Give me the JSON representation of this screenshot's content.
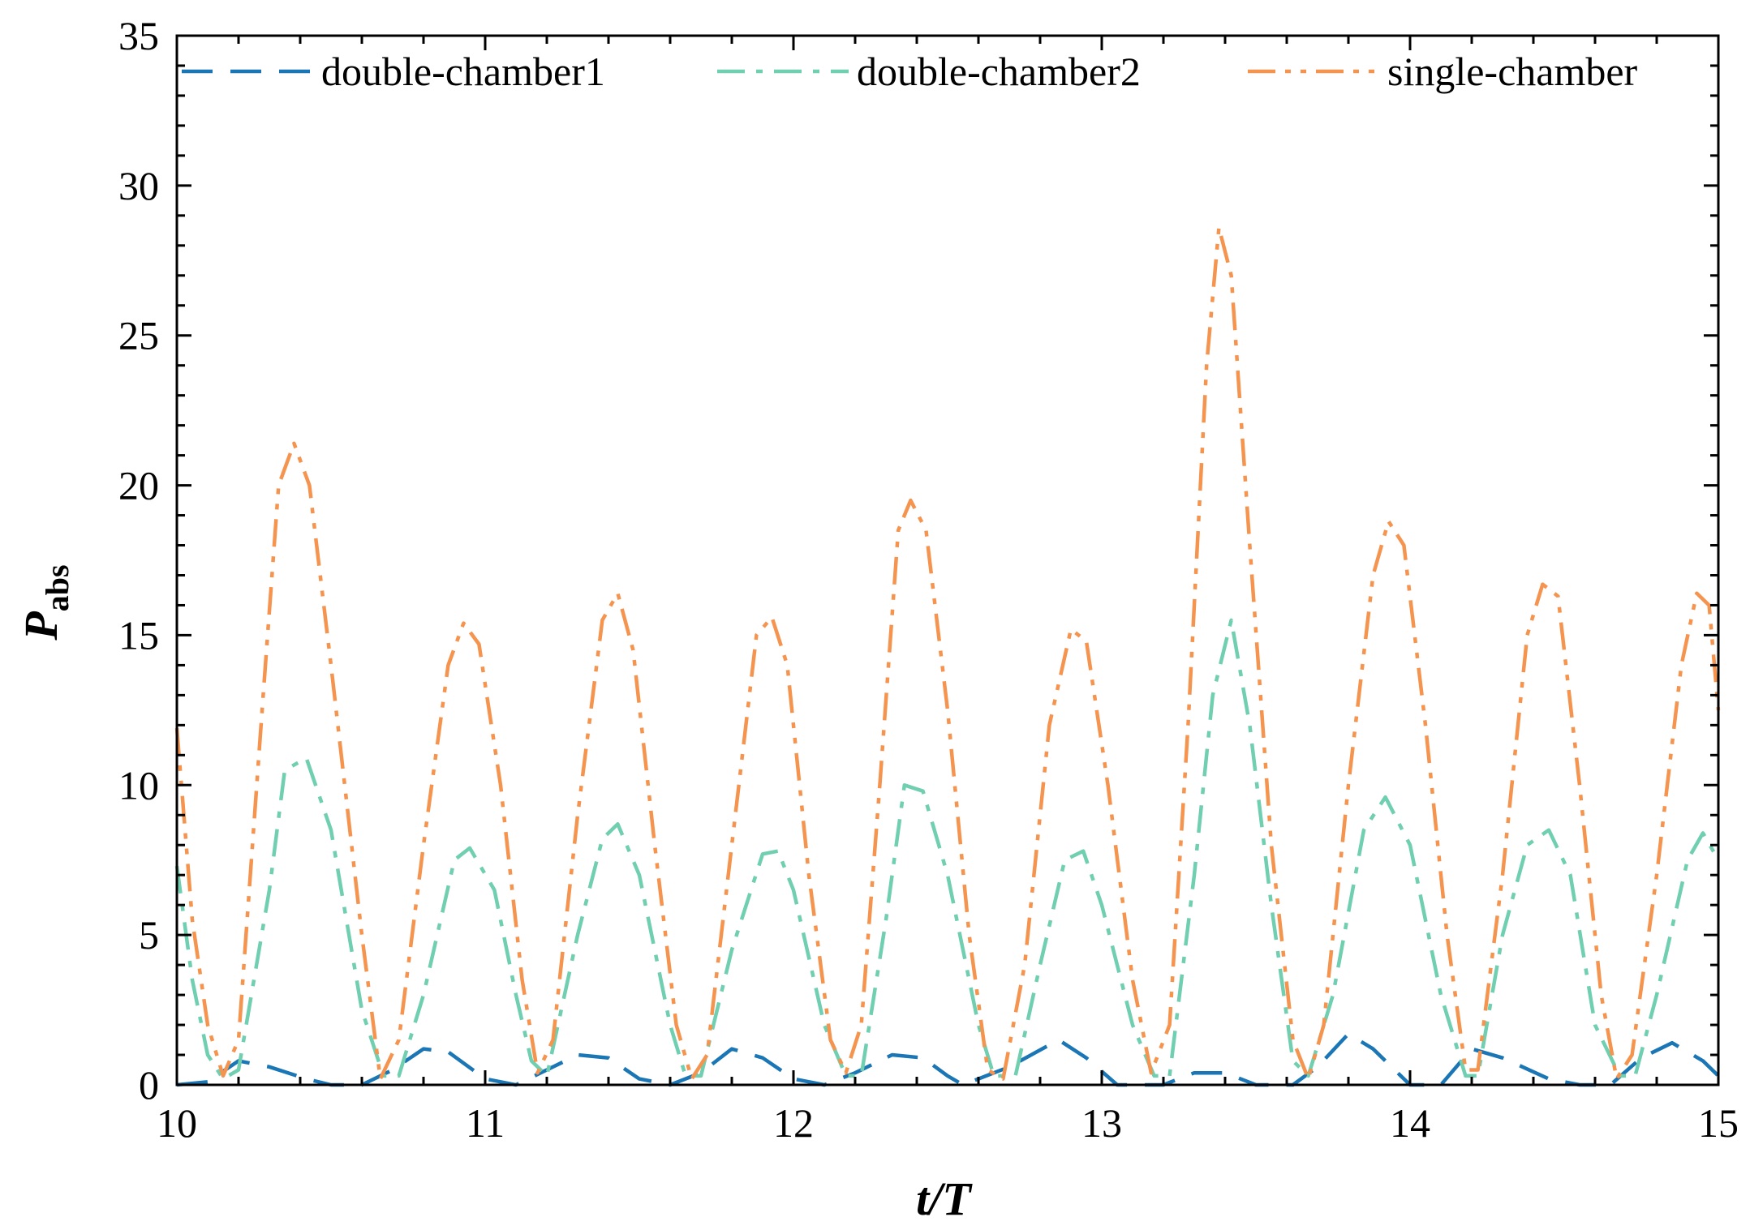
{
  "chart_data": {
    "type": "line",
    "xlabel_main": "t/T",
    "ylabel_main": "P",
    "ylabel_sub": "abs",
    "xlim": [
      10,
      15
    ],
    "ylim": [
      0,
      35
    ],
    "xticks": [
      10,
      11,
      12,
      13,
      14,
      15
    ],
    "yticks": [
      0,
      5,
      10,
      15,
      20,
      25,
      30,
      35
    ],
    "grid": false,
    "legend_position": "top",
    "series": [
      {
        "name": "double-chamber1",
        "color": "#1a76b4",
        "dash": "dashed",
        "points": [
          [
            10.0,
            0
          ],
          [
            10.1,
            0.1
          ],
          [
            10.2,
            0.8
          ],
          [
            10.3,
            0.6
          ],
          [
            10.42,
            0.2
          ],
          [
            10.5,
            0
          ],
          [
            10.6,
            0
          ],
          [
            10.7,
            0.5
          ],
          [
            10.8,
            1.2
          ],
          [
            10.88,
            1.1
          ],
          [
            11.0,
            0.2
          ],
          [
            11.1,
            0
          ],
          [
            11.2,
            0.5
          ],
          [
            11.3,
            1.0
          ],
          [
            11.4,
            0.9
          ],
          [
            11.5,
            0.2
          ],
          [
            11.6,
            0
          ],
          [
            11.7,
            0.4
          ],
          [
            11.8,
            1.2
          ],
          [
            11.9,
            0.9
          ],
          [
            12.0,
            0.2
          ],
          [
            12.1,
            0
          ],
          [
            12.2,
            0.4
          ],
          [
            12.32,
            1.0
          ],
          [
            12.42,
            0.9
          ],
          [
            12.5,
            0.3
          ],
          [
            12.55,
            0
          ],
          [
            12.7,
            0.6
          ],
          [
            12.86,
            1.5
          ],
          [
            12.95,
            0.9
          ],
          [
            13.05,
            0
          ],
          [
            13.2,
            0
          ],
          [
            13.3,
            0.4
          ],
          [
            13.4,
            0.4
          ],
          [
            13.5,
            0
          ],
          [
            13.62,
            0
          ],
          [
            13.7,
            0.6
          ],
          [
            13.8,
            1.7
          ],
          [
            13.88,
            1.2
          ],
          [
            14.0,
            0
          ],
          [
            14.1,
            0
          ],
          [
            14.2,
            1.2
          ],
          [
            14.3,
            0.9
          ],
          [
            14.45,
            0.2
          ],
          [
            14.55,
            0
          ],
          [
            14.65,
            0
          ],
          [
            14.75,
            0.9
          ],
          [
            14.85,
            1.4
          ],
          [
            14.95,
            0.8
          ],
          [
            15.0,
            0.3
          ]
        ]
      },
      {
        "name": "double-chamber2",
        "color": "#6fcfb0",
        "dash": "dash-dot",
        "points": [
          [
            10.0,
            7.3
          ],
          [
            10.05,
            3.5
          ],
          [
            10.1,
            1.0
          ],
          [
            10.15,
            0.2
          ],
          [
            10.2,
            0.5
          ],
          [
            10.3,
            6.5
          ],
          [
            10.35,
            10.5
          ],
          [
            10.42,
            10.9
          ],
          [
            10.5,
            8.5
          ],
          [
            10.6,
            2.5
          ],
          [
            10.67,
            0.3
          ],
          [
            10.72,
            0.3
          ],
          [
            10.8,
            3.0
          ],
          [
            10.9,
            7.5
          ],
          [
            10.95,
            7.9
          ],
          [
            11.03,
            6.5
          ],
          [
            11.1,
            3.0
          ],
          [
            11.15,
            0.8
          ],
          [
            11.2,
            0.3
          ],
          [
            11.3,
            5.0
          ],
          [
            11.38,
            8.2
          ],
          [
            11.43,
            8.7
          ],
          [
            11.5,
            7.0
          ],
          [
            11.6,
            2.0
          ],
          [
            11.65,
            0.3
          ],
          [
            11.7,
            0.3
          ],
          [
            11.8,
            4.5
          ],
          [
            11.9,
            7.7
          ],
          [
            11.95,
            7.8
          ],
          [
            12.0,
            6.5
          ],
          [
            12.1,
            2.0
          ],
          [
            12.17,
            0.3
          ],
          [
            12.22,
            0.3
          ],
          [
            12.3,
            5.5
          ],
          [
            12.36,
            10.0
          ],
          [
            12.42,
            9.8
          ],
          [
            12.5,
            7.0
          ],
          [
            12.6,
            2.0
          ],
          [
            12.65,
            0.3
          ],
          [
            12.72,
            0.3
          ],
          [
            12.8,
            4.0
          ],
          [
            12.88,
            7.5
          ],
          [
            12.94,
            7.8
          ],
          [
            13.0,
            6.0
          ],
          [
            13.1,
            2.0
          ],
          [
            13.17,
            0.3
          ],
          [
            13.22,
            0.3
          ],
          [
            13.3,
            7.0
          ],
          [
            13.36,
            13.0
          ],
          [
            13.42,
            15.5
          ],
          [
            13.48,
            12.0
          ],
          [
            13.55,
            6.0
          ],
          [
            13.62,
            0.8
          ],
          [
            13.67,
            0.3
          ],
          [
            13.75,
            3.0
          ],
          [
            13.85,
            8.5
          ],
          [
            13.92,
            9.6
          ],
          [
            14.0,
            8.0
          ],
          [
            14.1,
            3.0
          ],
          [
            14.18,
            0.3
          ],
          [
            14.22,
            0.3
          ],
          [
            14.3,
            5.0
          ],
          [
            14.38,
            8.0
          ],
          [
            14.45,
            8.5
          ],
          [
            14.52,
            7.0
          ],
          [
            14.6,
            2.0
          ],
          [
            14.68,
            0.3
          ],
          [
            14.73,
            0.3
          ],
          [
            14.8,
            3.0
          ],
          [
            14.9,
            7.5
          ],
          [
            14.95,
            8.4
          ],
          [
            15.0,
            7.5
          ]
        ]
      },
      {
        "name": "single-chamber",
        "color": "#f5944e",
        "dash": "dash-dot-dot",
        "points": [
          [
            10.0,
            11.9
          ],
          [
            10.05,
            5.5
          ],
          [
            10.1,
            2.0
          ],
          [
            10.15,
            0.3
          ],
          [
            10.2,
            1.5
          ],
          [
            10.28,
            13.0
          ],
          [
            10.33,
            20.0
          ],
          [
            10.38,
            21.4
          ],
          [
            10.43,
            20.0
          ],
          [
            10.5,
            14.0
          ],
          [
            10.6,
            5.0
          ],
          [
            10.66,
            0.2
          ],
          [
            10.72,
            1.5
          ],
          [
            10.8,
            8.0
          ],
          [
            10.88,
            14.0
          ],
          [
            10.93,
            15.4
          ],
          [
            10.98,
            14.7
          ],
          [
            11.05,
            10.0
          ],
          [
            11.12,
            3.5
          ],
          [
            11.17,
            0.4
          ],
          [
            11.22,
            1.5
          ],
          [
            11.3,
            9.0
          ],
          [
            11.38,
            15.5
          ],
          [
            11.43,
            16.4
          ],
          [
            11.48,
            14.5
          ],
          [
            11.55,
            8.0
          ],
          [
            11.62,
            2.0
          ],
          [
            11.67,
            0.2
          ],
          [
            11.72,
            1.0
          ],
          [
            11.8,
            8.0
          ],
          [
            11.88,
            15.0
          ],
          [
            11.93,
            15.6
          ],
          [
            11.98,
            14.0
          ],
          [
            12.05,
            7.0
          ],
          [
            12.12,
            1.5
          ],
          [
            12.17,
            0.4
          ],
          [
            12.22,
            2.0
          ],
          [
            12.28,
            10.0
          ],
          [
            12.34,
            18.5
          ],
          [
            12.38,
            19.5
          ],
          [
            12.43,
            18.5
          ],
          [
            12.5,
            12.5
          ],
          [
            12.57,
            5.0
          ],
          [
            12.63,
            0.5
          ],
          [
            12.68,
            0.2
          ],
          [
            12.75,
            4.0
          ],
          [
            12.83,
            12.0
          ],
          [
            12.9,
            15.2
          ],
          [
            12.95,
            14.8
          ],
          [
            13.02,
            10.0
          ],
          [
            13.1,
            3.5
          ],
          [
            13.16,
            0.4
          ],
          [
            13.22,
            2.0
          ],
          [
            13.28,
            12.0
          ],
          [
            13.34,
            24.0
          ],
          [
            13.38,
            28.6
          ],
          [
            13.42,
            27.0
          ],
          [
            13.48,
            18.0
          ],
          [
            13.55,
            8.0
          ],
          [
            13.62,
            1.5
          ],
          [
            13.67,
            0.2
          ],
          [
            13.72,
            2.0
          ],
          [
            13.8,
            10.0
          ],
          [
            13.88,
            17.0
          ],
          [
            13.93,
            18.8
          ],
          [
            13.98,
            18.0
          ],
          [
            14.05,
            12.0
          ],
          [
            14.12,
            5.0
          ],
          [
            14.18,
            0.5
          ],
          [
            14.22,
            0.5
          ],
          [
            14.3,
            7.0
          ],
          [
            14.38,
            15.0
          ],
          [
            14.43,
            16.7
          ],
          [
            14.48,
            16.3
          ],
          [
            14.55,
            10.0
          ],
          [
            14.62,
            3.0
          ],
          [
            14.67,
            0.2
          ],
          [
            14.72,
            1.0
          ],
          [
            14.8,
            7.0
          ],
          [
            14.88,
            14.0
          ],
          [
            14.93,
            16.4
          ],
          [
            14.97,
            16.0
          ],
          [
            15.0,
            12.5
          ]
        ]
      }
    ]
  }
}
